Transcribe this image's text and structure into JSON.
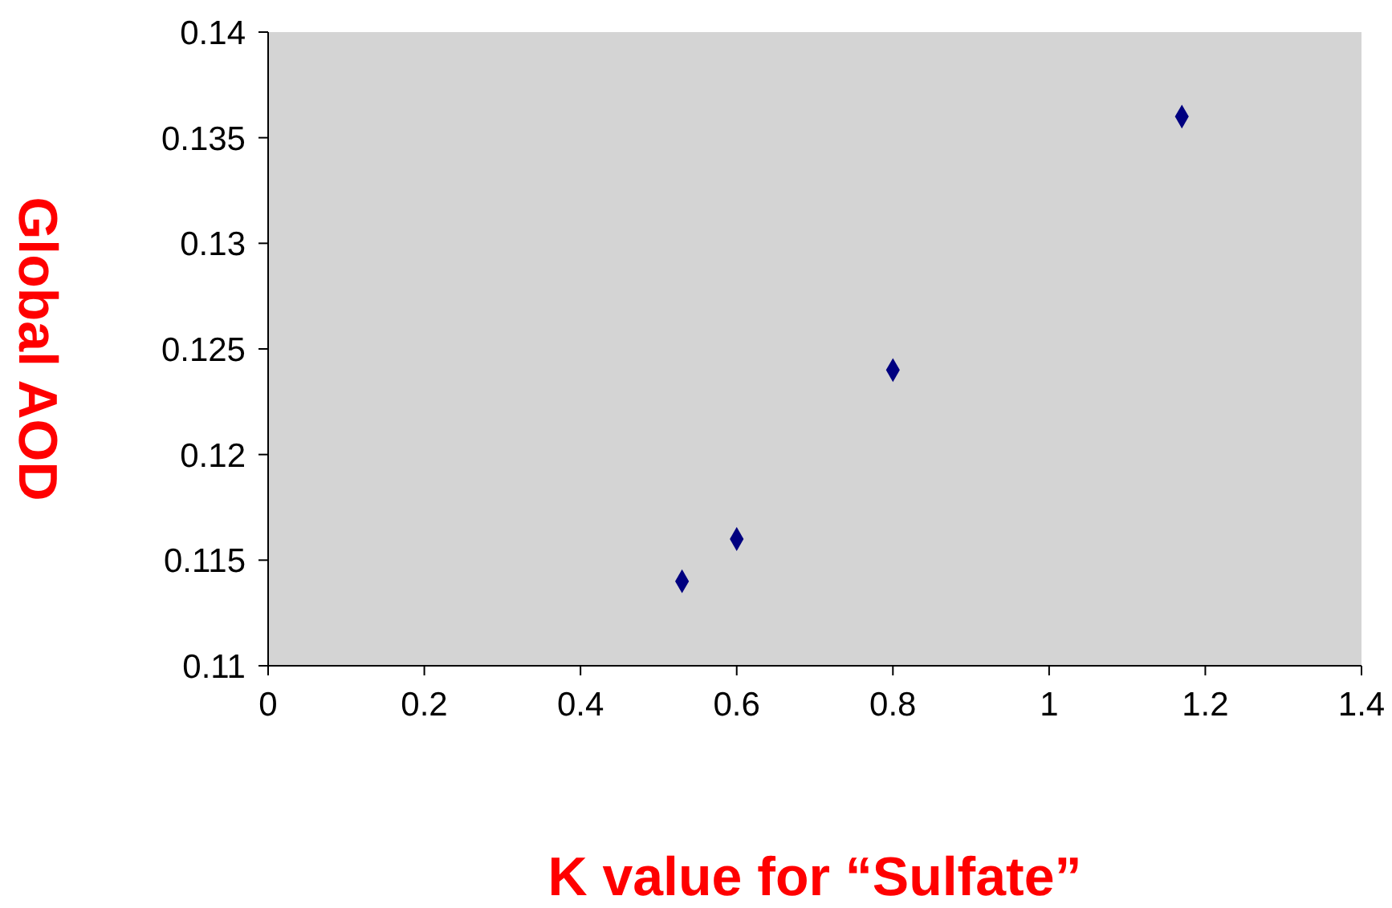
{
  "chart_data": {
    "type": "scatter",
    "xlabel": "Κ value for “Sulfate”",
    "ylabel": "Global AOD",
    "x": [
      0.53,
      0.6,
      0.8,
      1.17
    ],
    "series": [
      {
        "color": "#000080",
        "values": [
          0.114,
          0.116,
          0.124,
          0.136
        ]
      }
    ],
    "xlim": [
      0,
      1.4
    ],
    "xticks": [
      0,
      0.2,
      0.4,
      0.6,
      0.8,
      1,
      1.2,
      1.4
    ],
    "ylim": [
      0.11,
      0.14
    ],
    "yticks": [
      0.11,
      0.115,
      0.12,
      0.125,
      0.13,
      0.135,
      0.14
    ],
    "grid": false,
    "marker": "diamond"
  }
}
